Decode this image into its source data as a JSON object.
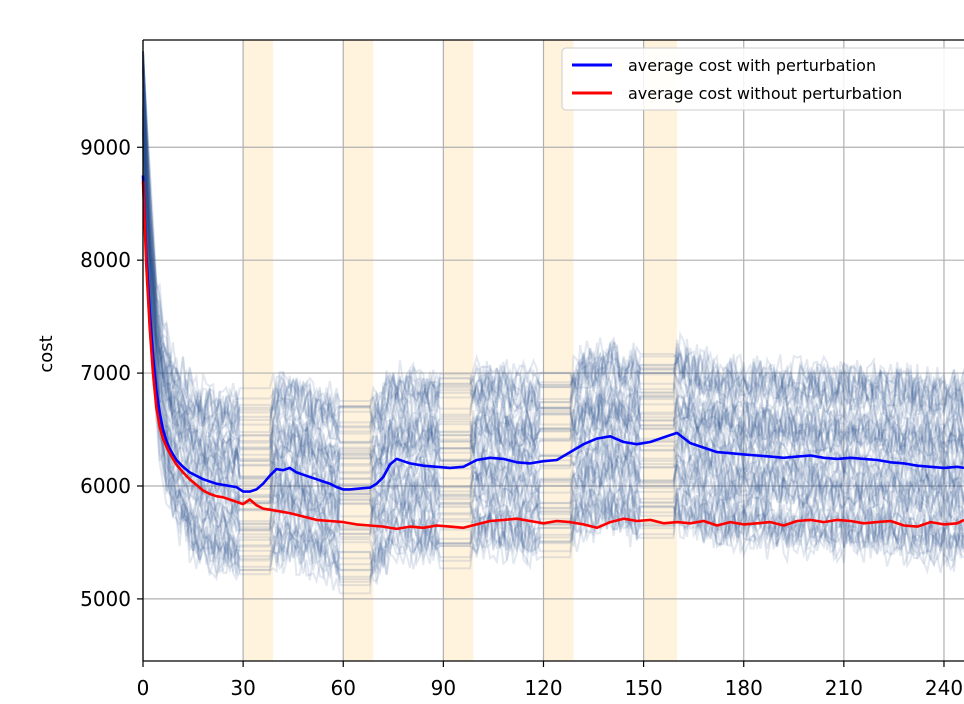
{
  "chart_data": {
    "type": "line",
    "title": "",
    "xlabel": "",
    "ylabel": "cost",
    "xlim": [
      0,
      246
    ],
    "ylim": [
      4450,
      9950
    ],
    "xticks": [
      0,
      30,
      60,
      90,
      120,
      150,
      180,
      210,
      240
    ],
    "xtick_labels": [
      "0",
      "30",
      "60",
      "90",
      "120",
      "150",
      "180",
      "210",
      "240"
    ],
    "yticks": [
      5000,
      6000,
      7000,
      8000,
      9000
    ],
    "ytick_labels": [
      "5000",
      "6000",
      "7000",
      "8000",
      "9000"
    ],
    "grid": true,
    "legend_position": "top-right",
    "perturbation_windows": [
      [
        30,
        39
      ],
      [
        60,
        69
      ],
      [
        90,
        99
      ],
      [
        120,
        129
      ],
      [
        150,
        160
      ]
    ],
    "background_runs": {
      "count": 60,
      "color": "#2a4b8d"
    },
    "series": [
      {
        "name": "average cost with perturbation",
        "color": "#0000ff",
        "x": [
          0,
          1,
          2,
          3,
          4,
          5,
          6,
          7,
          8,
          9,
          10,
          12,
          14,
          16,
          18,
          20,
          22,
          24,
          26,
          28,
          30,
          32,
          34,
          36,
          38,
          40,
          42,
          44,
          46,
          48,
          50,
          52,
          54,
          56,
          58,
          60,
          62,
          64,
          66,
          68,
          70,
          72,
          74,
          76,
          78,
          80,
          84,
          88,
          92,
          96,
          100,
          104,
          108,
          112,
          116,
          120,
          124,
          128,
          132,
          136,
          140,
          144,
          148,
          152,
          156,
          160,
          164,
          168,
          172,
          176,
          180,
          184,
          188,
          192,
          196,
          200,
          204,
          208,
          212,
          216,
          220,
          224,
          228,
          232,
          236,
          240,
          244,
          246
        ],
        "y": [
          8750,
          8050,
          7550,
          7150,
          6850,
          6650,
          6500,
          6400,
          6330,
          6280,
          6230,
          6170,
          6120,
          6090,
          6060,
          6040,
          6020,
          6010,
          6000,
          5990,
          5950,
          5950,
          5970,
          6020,
          6090,
          6150,
          6140,
          6160,
          6120,
          6100,
          6080,
          6060,
          6040,
          6020,
          5990,
          5970,
          5970,
          5975,
          5980,
          5985,
          6020,
          6080,
          6190,
          6240,
          6220,
          6200,
          6180,
          6170,
          6160,
          6170,
          6230,
          6250,
          6240,
          6210,
          6200,
          6220,
          6230,
          6300,
          6370,
          6420,
          6440,
          6390,
          6370,
          6390,
          6430,
          6470,
          6380,
          6340,
          6300,
          6290,
          6280,
          6270,
          6260,
          6250,
          6260,
          6270,
          6250,
          6240,
          6250,
          6240,
          6230,
          6210,
          6200,
          6180,
          6170,
          6160,
          6170,
          6160
        ]
      },
      {
        "name": "average cost without perturbation",
        "color": "#ff0000",
        "x": [
          0,
          1,
          2,
          3,
          4,
          5,
          6,
          7,
          8,
          9,
          10,
          12,
          14,
          16,
          18,
          20,
          22,
          24,
          26,
          28,
          30,
          32,
          34,
          36,
          38,
          40,
          44,
          48,
          52,
          56,
          60,
          64,
          68,
          72,
          76,
          80,
          84,
          88,
          92,
          96,
          100,
          104,
          108,
          112,
          116,
          120,
          124,
          128,
          132,
          136,
          140,
          144,
          148,
          152,
          156,
          160,
          164,
          168,
          172,
          176,
          180,
          184,
          188,
          192,
          196,
          200,
          204,
          208,
          212,
          216,
          220,
          224,
          228,
          232,
          236,
          240,
          244,
          246
        ],
        "y": [
          8700,
          7950,
          7400,
          7000,
          6700,
          6520,
          6420,
          6350,
          6290,
          6240,
          6190,
          6120,
          6060,
          6010,
          5960,
          5930,
          5910,
          5900,
          5880,
          5860,
          5840,
          5880,
          5830,
          5800,
          5790,
          5780,
          5760,
          5730,
          5700,
          5690,
          5680,
          5660,
          5650,
          5640,
          5620,
          5640,
          5630,
          5650,
          5640,
          5630,
          5660,
          5690,
          5700,
          5710,
          5690,
          5670,
          5690,
          5680,
          5660,
          5630,
          5680,
          5710,
          5690,
          5700,
          5670,
          5680,
          5670,
          5690,
          5650,
          5680,
          5660,
          5670,
          5680,
          5650,
          5690,
          5700,
          5680,
          5700,
          5690,
          5670,
          5680,
          5690,
          5650,
          5640,
          5680,
          5660,
          5670,
          5700
        ]
      }
    ]
  }
}
